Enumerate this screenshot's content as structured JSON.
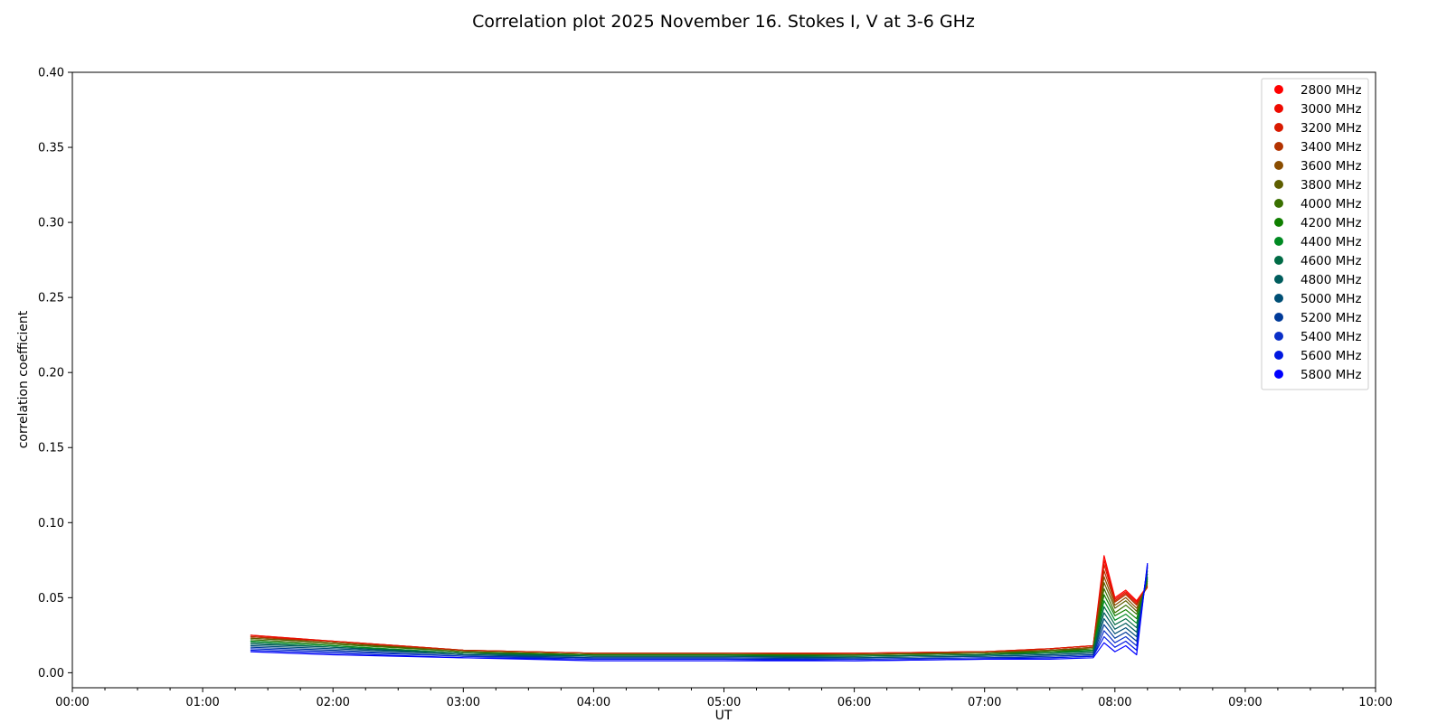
{
  "chart_data": {
    "type": "line",
    "title": "Correlation plot 2025 November 16. Stokes I, V at 3-6 GHz",
    "xlabel": "UT",
    "ylabel": "correlation coefficient",
    "xlim": [
      "00:00",
      "10:00"
    ],
    "ylim": [
      -0.01,
      0.4
    ],
    "grid": false,
    "legend_position": "top-right",
    "x_ticks": [
      "00:00",
      "01:00",
      "02:00",
      "03:00",
      "04:00",
      "05:00",
      "06:00",
      "07:00",
      "08:00",
      "09:00",
      "10:00"
    ],
    "y_ticks": [
      "0.00",
      "0.05",
      "0.10",
      "0.15",
      "0.20",
      "0.25",
      "0.30",
      "0.35",
      "0.40"
    ],
    "x": [
      "01:22",
      "02:00",
      "03:00",
      "04:00",
      "05:00",
      "06:00",
      "07:00",
      "07:30",
      "07:50",
      "07:55",
      "08:00",
      "08:05",
      "08:10",
      "08:15"
    ],
    "series": [
      {
        "name": "2800 MHz",
        "color": "#ff0000",
        "values": [
          0.025,
          0.021,
          0.015,
          0.013,
          0.013,
          0.013,
          0.014,
          0.016,
          0.018,
          0.078,
          0.05,
          0.055,
          0.048,
          0.058
        ]
      },
      {
        "name": "3000 MHz",
        "color": "#ee0a00",
        "values": [
          0.025,
          0.021,
          0.015,
          0.013,
          0.013,
          0.013,
          0.014,
          0.016,
          0.018,
          0.075,
          0.049,
          0.054,
          0.047,
          0.057
        ]
      },
      {
        "name": "3200 MHz",
        "color": "#d91a00",
        "values": [
          0.024,
          0.021,
          0.015,
          0.013,
          0.013,
          0.013,
          0.014,
          0.016,
          0.018,
          0.072,
          0.048,
          0.053,
          0.046,
          0.057
        ]
      },
      {
        "name": "3400 MHz",
        "color": "#b33300",
        "values": [
          0.024,
          0.02,
          0.015,
          0.013,
          0.013,
          0.012,
          0.014,
          0.015,
          0.017,
          0.068,
          0.047,
          0.052,
          0.045,
          0.058
        ]
      },
      {
        "name": "3600 MHz",
        "color": "#8a4d00",
        "values": [
          0.023,
          0.02,
          0.014,
          0.012,
          0.012,
          0.012,
          0.013,
          0.015,
          0.017,
          0.064,
          0.045,
          0.05,
          0.043,
          0.059
        ]
      },
      {
        "name": "3800 MHz",
        "color": "#5e5e00",
        "values": [
          0.023,
          0.02,
          0.014,
          0.012,
          0.012,
          0.012,
          0.013,
          0.015,
          0.016,
          0.06,
          0.043,
          0.048,
          0.041,
          0.06
        ]
      },
      {
        "name": "4000 MHz",
        "color": "#3a7000",
        "values": [
          0.022,
          0.019,
          0.014,
          0.012,
          0.012,
          0.012,
          0.013,
          0.014,
          0.016,
          0.056,
          0.04,
          0.045,
          0.039,
          0.061
        ]
      },
      {
        "name": "4200 MHz",
        "color": "#0f7f00",
        "values": [
          0.021,
          0.018,
          0.013,
          0.012,
          0.012,
          0.011,
          0.012,
          0.014,
          0.015,
          0.052,
          0.038,
          0.042,
          0.036,
          0.062
        ]
      },
      {
        "name": "4400 MHz",
        "color": "#008a22",
        "values": [
          0.021,
          0.018,
          0.013,
          0.011,
          0.011,
          0.011,
          0.012,
          0.013,
          0.015,
          0.048,
          0.035,
          0.039,
          0.033,
          0.063
        ]
      },
      {
        "name": "4600 MHz",
        "color": "#006b45",
        "values": [
          0.02,
          0.017,
          0.013,
          0.011,
          0.011,
          0.011,
          0.012,
          0.013,
          0.014,
          0.044,
          0.032,
          0.036,
          0.03,
          0.064
        ]
      },
      {
        "name": "4800 MHz",
        "color": "#005d5d",
        "values": [
          0.019,
          0.017,
          0.012,
          0.011,
          0.011,
          0.01,
          0.011,
          0.012,
          0.013,
          0.04,
          0.029,
          0.033,
          0.027,
          0.066
        ]
      },
      {
        "name": "5000 MHz",
        "color": "#004f75",
        "values": [
          0.018,
          0.016,
          0.012,
          0.01,
          0.01,
          0.01,
          0.011,
          0.012,
          0.013,
          0.036,
          0.026,
          0.03,
          0.024,
          0.068
        ]
      },
      {
        "name": "5200 MHz",
        "color": "#003a99",
        "values": [
          0.017,
          0.015,
          0.011,
          0.01,
          0.01,
          0.009,
          0.01,
          0.011,
          0.012,
          0.032,
          0.023,
          0.027,
          0.021,
          0.07
        ]
      },
      {
        "name": "5400 MHz",
        "color": "#0a2fc8",
        "values": [
          0.016,
          0.014,
          0.011,
          0.009,
          0.009,
          0.009,
          0.01,
          0.01,
          0.011,
          0.028,
          0.02,
          0.024,
          0.018,
          0.071
        ]
      },
      {
        "name": "5600 MHz",
        "color": "#0018e0",
        "values": [
          0.015,
          0.013,
          0.01,
          0.009,
          0.009,
          0.008,
          0.009,
          0.01,
          0.011,
          0.024,
          0.017,
          0.021,
          0.015,
          0.072
        ]
      },
      {
        "name": "5800 MHz",
        "color": "#0000ff",
        "values": [
          0.014,
          0.012,
          0.01,
          0.008,
          0.008,
          0.008,
          0.009,
          0.009,
          0.01,
          0.02,
          0.014,
          0.018,
          0.012,
          0.073
        ]
      }
    ]
  }
}
